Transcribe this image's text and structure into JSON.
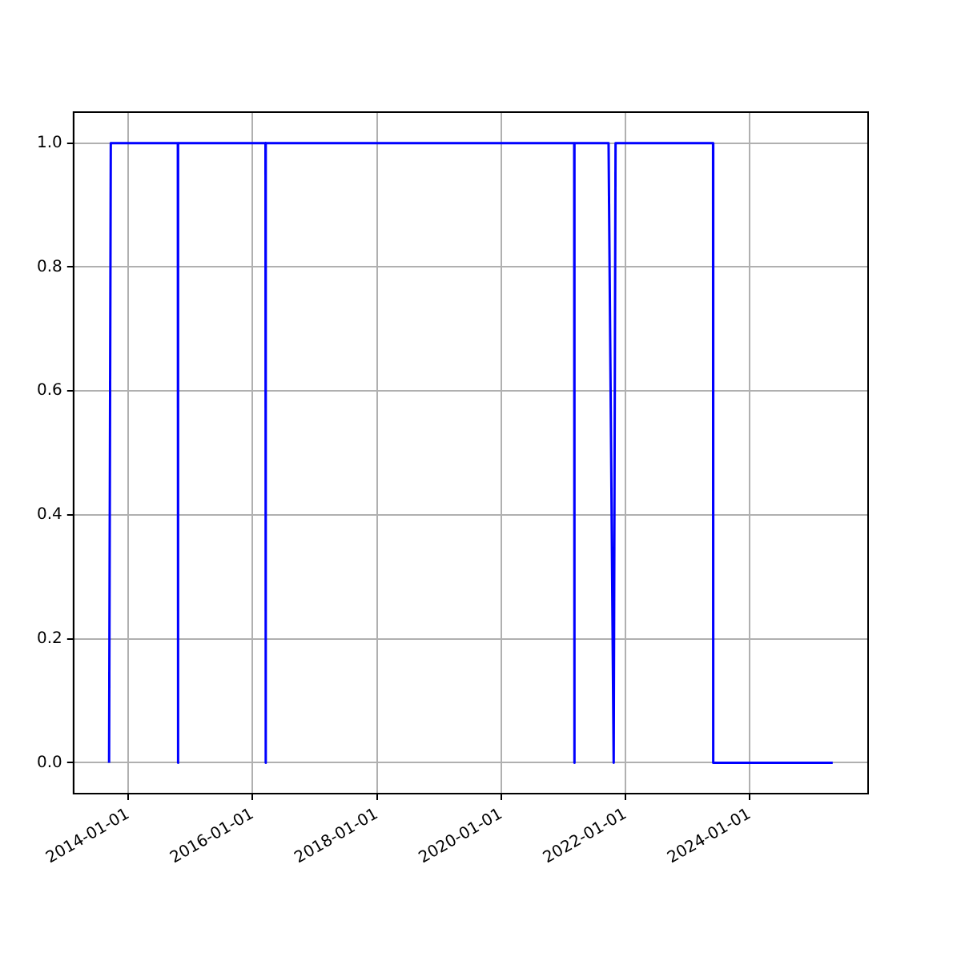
{
  "chart_data": {
    "type": "line",
    "x": [
      "2013-09-10",
      "2013-09-20",
      "2014-10-19",
      "2014-10-20",
      "2014-10-21",
      "2016-03-17",
      "2016-03-18",
      "2016-03-19",
      "2021-03-05",
      "2021-03-06",
      "2021-03-07",
      "2021-09-23",
      "2021-10-23",
      "2021-11-03",
      "2023-05-30",
      "2023-05-31",
      "2025-05-02"
    ],
    "series": [
      {
        "color": "#0000ff",
        "values": [
          0,
          1,
          1,
          0,
          1,
          1,
          0,
          1,
          1,
          0,
          1,
          1,
          0,
          1,
          1,
          0,
          0
        ]
      }
    ],
    "xlim": [
      "2013-02-13",
      "2025-11-26"
    ],
    "xticks": [
      "2014-01-01",
      "2016-01-01",
      "2018-01-01",
      "2020-01-01",
      "2022-01-01",
      "2024-01-01"
    ],
    "ylim": [
      -0.05,
      1.05
    ],
    "yticks": [
      {
        "value": 0,
        "label": "0.0"
      },
      {
        "value": 0.2,
        "label": "0.2"
      },
      {
        "value": 0.4,
        "label": "0.4"
      },
      {
        "value": 0.6,
        "label": "0.6"
      },
      {
        "value": 0.8,
        "label": "0.8"
      },
      {
        "value": 1,
        "label": "1.0"
      }
    ],
    "grid": true,
    "legend": false,
    "marker": "none",
    "line_style": "solid"
  }
}
